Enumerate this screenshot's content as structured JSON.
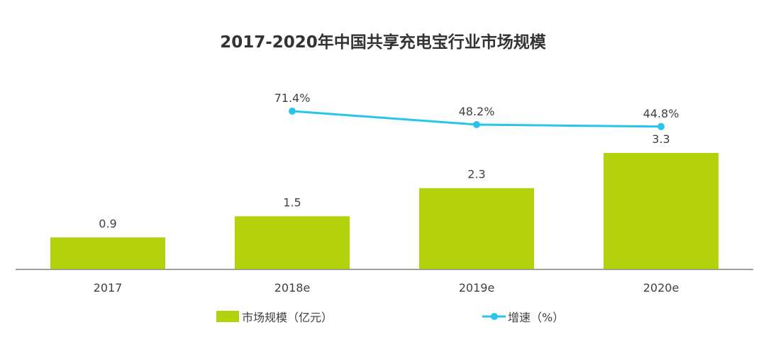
{
  "chart_data": {
    "type": "bar",
    "title": "2017-2020年中国共享充电宝行业市场规模",
    "categories": [
      "2017",
      "2018e",
      "2019e",
      "2020e"
    ],
    "series": [
      {
        "name": "市场规模（亿元）",
        "type": "bar",
        "values": [
          0.9,
          1.5,
          2.3,
          3.3
        ],
        "labels": [
          "0.9",
          "1.5",
          "2.3",
          "3.3"
        ],
        "color": "#b3d20c"
      },
      {
        "name": "增速（%）",
        "type": "line",
        "values": [
          null,
          71.4,
          48.2,
          44.8
        ],
        "labels": [
          "",
          "71.4%",
          "48.2%",
          "44.8%"
        ],
        "color": "#29c4ea"
      }
    ],
    "axis_color": "#7f7f7f",
    "grid": false,
    "legend_position": "bottom"
  }
}
